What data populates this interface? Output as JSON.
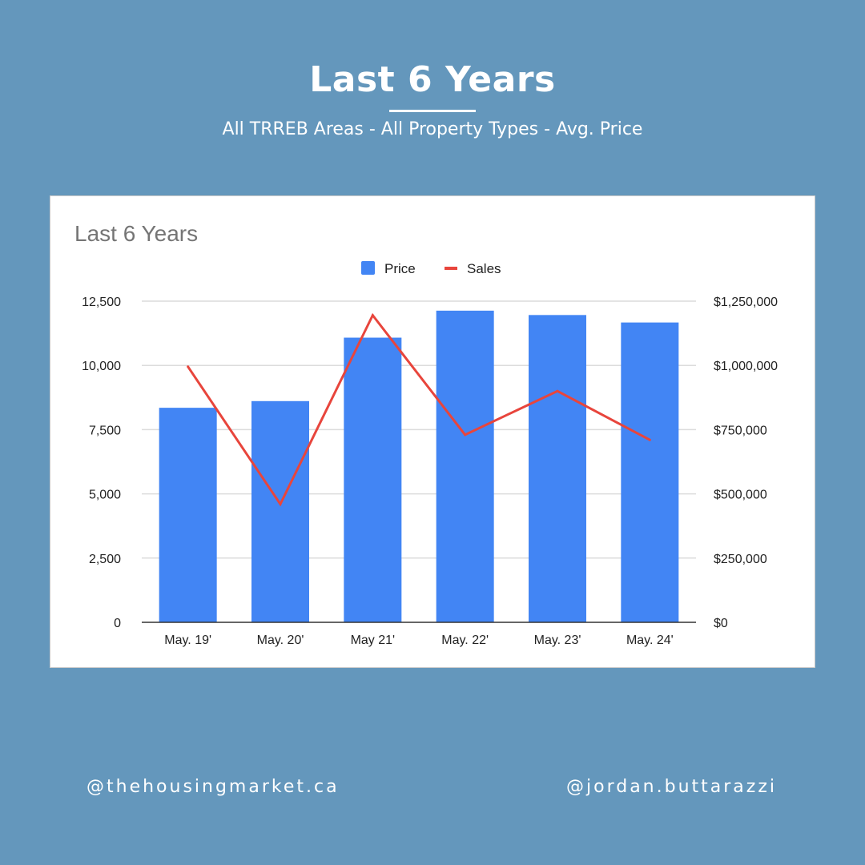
{
  "header": {
    "title": "Last 6 Years",
    "subtitle": "All TRREB Areas - All Property Types - Avg. Price"
  },
  "chart_data": {
    "type": "bar",
    "title": "Last 6 Years",
    "categories": [
      "May. 19'",
      "May. 20'",
      "May 21'",
      "May. 22'",
      "May. 23'",
      "May. 24'"
    ],
    "series": [
      {
        "name": "Price",
        "type": "bar",
        "axis": "right",
        "color": "#4285f4",
        "values": [
          835000,
          861000,
          1108000,
          1213000,
          1196000,
          1167000
        ]
      },
      {
        "name": "Sales",
        "type": "line",
        "axis": "left",
        "color": "#e8453c",
        "values": [
          9950,
          4600,
          11950,
          7300,
          9000,
          7100
        ]
      }
    ],
    "left_axis": {
      "ylim": [
        0,
        12500
      ],
      "ticks": [
        "0",
        "2,500",
        "5,000",
        "7,500",
        "10,000",
        "12,500"
      ]
    },
    "right_axis": {
      "ylim": [
        0,
        1250000
      ],
      "ticks": [
        "$0",
        "$250,000",
        "$500,000",
        "$750,000",
        "$1,000,000",
        "$1,250,000"
      ]
    },
    "grid": true,
    "legend": "top-center"
  },
  "footer": {
    "left_handle": "@thehousingmarket.ca",
    "right_handle": "@jordan.buttarazzi"
  }
}
